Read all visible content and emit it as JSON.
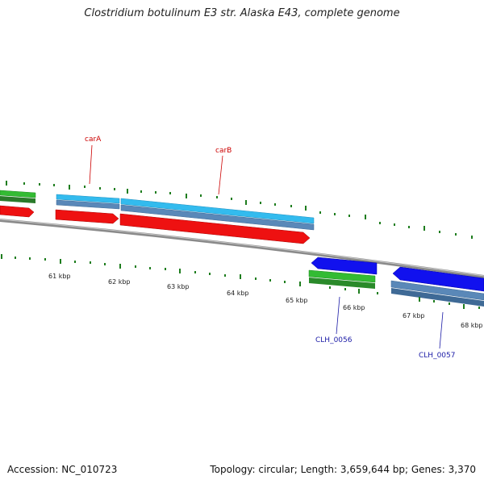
{
  "title": "Clostridium botulinum E3 str. Alaska E43, complete genome",
  "footer": {
    "accession": "Accession: NC_010723",
    "summary": "Topology: circular; Length: 3,659,644 bp; Genes: 3,370"
  },
  "colors": {
    "tick": "#1e7d1e",
    "backbone": "#8a8a8a",
    "red_feature": "#ee1111",
    "cyan_feature": "#33bbee",
    "steel_feature": "#5a88b8",
    "green_feature": "#33bb33",
    "blue_feature": "#1111ee",
    "red_label": "#cc0000",
    "blue_label": "#1a1aa6"
  },
  "scale_labels": [
    "61 kbp",
    "62 kbp",
    "63 kbp",
    "64 kbp",
    "65 kbp",
    "66 kbp",
    "67 kbp",
    "68 kbp"
  ],
  "gene_labels": {
    "carA": "carA",
    "carB": "carB",
    "clh56": "CLH_0056",
    "clh57": "CLH_0057"
  }
}
